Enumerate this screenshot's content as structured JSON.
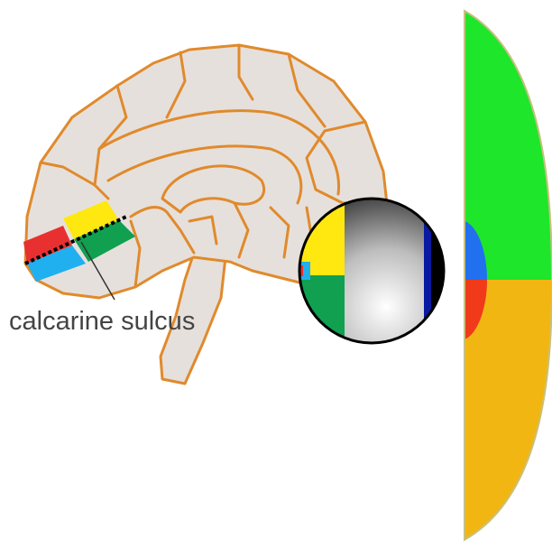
{
  "labels": {
    "sulcus": "calcarine sulcus"
  }
}
